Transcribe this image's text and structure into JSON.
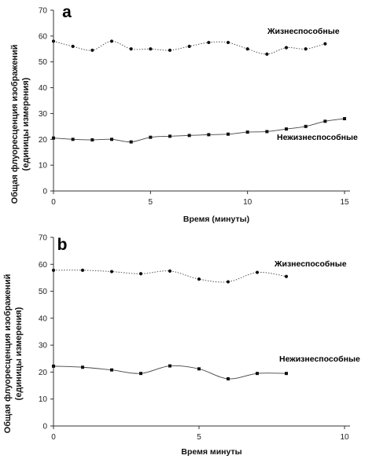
{
  "chart_data": [
    {
      "type": "line",
      "panel_label": "a",
      "xlabel": "Время (минуты)",
      "ylabel_line1": "Общая флуоресценция изображений",
      "ylabel_line2": "(единицы измерения)",
      "xlim": [
        0,
        15
      ],
      "ylim": [
        0,
        70
      ],
      "x_ticks": [
        0,
        5,
        10,
        15
      ],
      "y_ticks": [
        0,
        10,
        20,
        30,
        40,
        50,
        60,
        70
      ],
      "grid": false,
      "series": [
        {
          "name": "Жизнеспособные",
          "x": [
            0,
            1,
            2,
            3,
            4,
            5,
            6,
            7,
            8,
            9,
            10,
            11,
            12,
            13,
            14
          ],
          "y": [
            58,
            56,
            54.5,
            58,
            55,
            55,
            54.5,
            56,
            57.5,
            57.5,
            55,
            53,
            55.5,
            55,
            57
          ],
          "line_style": "dotted",
          "color": "#444444"
        },
        {
          "name": "Нежизнеспособные",
          "x": [
            0,
            1,
            2,
            3,
            4,
            5,
            6,
            7,
            8,
            9,
            10,
            11,
            12,
            13,
            14,
            15
          ],
          "y": [
            20.5,
            20,
            19.8,
            20,
            19,
            20.8,
            21.2,
            21.5,
            21.8,
            22,
            22.8,
            23,
            24,
            25,
            27,
            28
          ],
          "line_style": "solid",
          "color": "#444444"
        }
      ]
    },
    {
      "type": "line",
      "panel_label": "b",
      "xlabel": "Время минуты",
      "ylabel_line1": "Общая флуоресценция изображений",
      "ylabel_line2": "(единицы измерения)",
      "xlim": [
        0,
        10
      ],
      "ylim": [
        0,
        70
      ],
      "x_ticks": [
        0,
        5,
        10
      ],
      "y_ticks": [
        0,
        10,
        20,
        30,
        40,
        50,
        60,
        70
      ],
      "grid": false,
      "series": [
        {
          "name": "Жизнеспособные",
          "x": [
            0,
            1,
            2,
            3,
            4,
            5,
            6,
            7,
            8
          ],
          "y": [
            57.8,
            57.8,
            57.3,
            56.5,
            57.5,
            54.5,
            53.5,
            57,
            55.5
          ],
          "line_style": "dotted",
          "color": "#444444"
        },
        {
          "name": "Нежизнеспособные",
          "x": [
            0,
            1,
            2,
            3,
            4,
            5,
            6,
            7,
            8
          ],
          "y": [
            22.2,
            21.8,
            20.8,
            19.5,
            22.3,
            21.2,
            17.5,
            19.5,
            19.5
          ],
          "line_style": "solid",
          "color": "#444444"
        }
      ]
    }
  ]
}
